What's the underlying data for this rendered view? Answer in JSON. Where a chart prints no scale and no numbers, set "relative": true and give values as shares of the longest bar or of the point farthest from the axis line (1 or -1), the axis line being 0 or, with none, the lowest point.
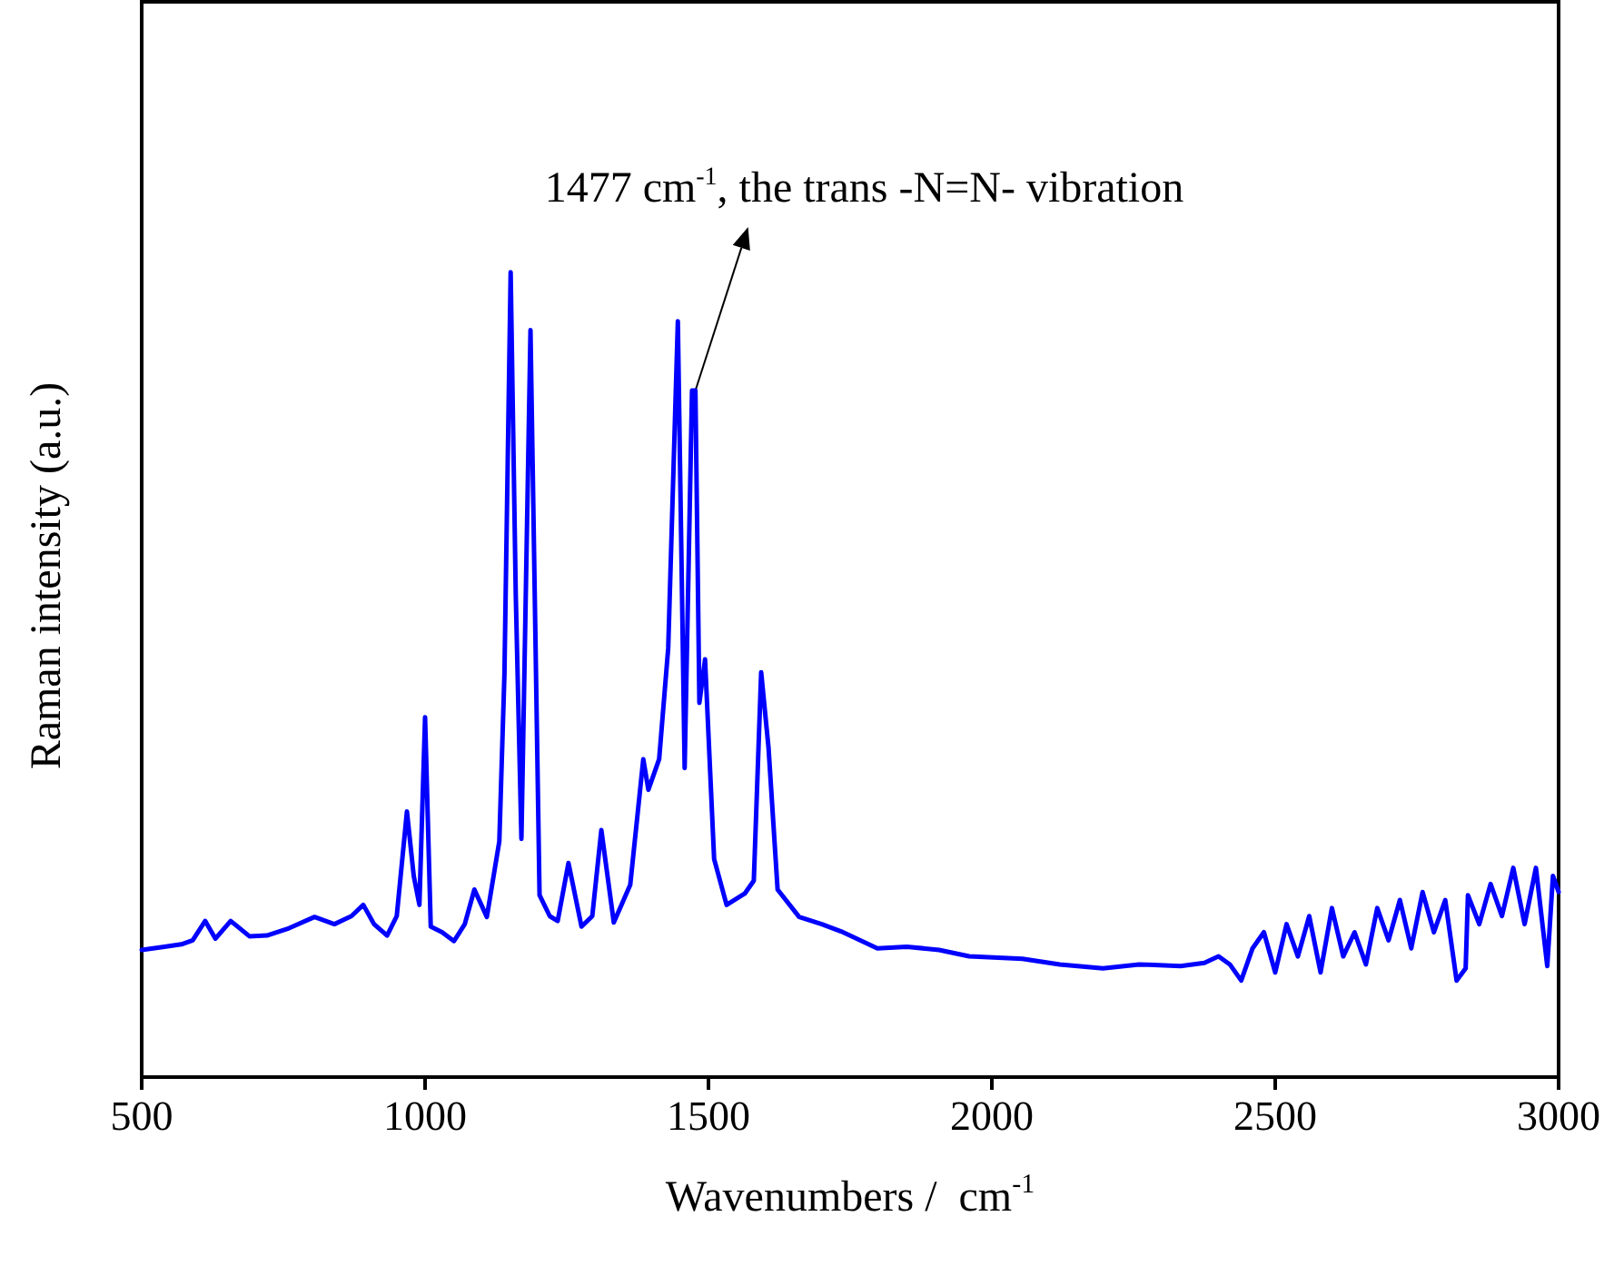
{
  "chart_data": {
    "type": "line",
    "relative": true,
    "xlabel": "Wavenumbers /  cm$^{-1}$",
    "ylabel": "Raman intensity (a.u.)",
    "xlim": [
      500,
      3000
    ],
    "xticks": [
      500,
      1000,
      1500,
      2000,
      2500,
      3000
    ],
    "grid": false,
    "marker": "none",
    "line_style": "solid",
    "annotations": [
      {
        "text": "1477 cm$^{-1}$, the trans -N=N- vibration",
        "x": 1477,
        "y": 0.853
      }
    ],
    "series": [
      {
        "color": "#0000ff",
        "x": [
          500,
          540,
          570,
          590,
          612,
          630,
          657,
          690,
          721,
          760,
          805,
          840,
          870,
          891,
          910,
          933,
          950,
          968,
          980,
          990,
          1000,
          1010,
          1030,
          1051,
          1070,
          1087,
          1109,
          1131,
          1140,
          1151,
          1160,
          1170,
          1186,
          1202,
          1220,
          1234,
          1253,
          1276,
          1295,
          1311,
          1333,
          1362,
          1385,
          1394,
          1413,
          1429,
          1446,
          1458,
          1471,
          1477,
          1484,
          1494,
          1510,
          1532,
          1564,
          1580,
          1593,
          1606,
          1622,
          1660,
          1700,
          1734,
          1798,
          1850,
          1907,
          1960,
          2054,
          2120,
          2196,
          2260,
          2333,
          2375,
          2400,
          2420,
          2440,
          2460,
          2480,
          2500,
          2520,
          2540,
          2560,
          2580,
          2600,
          2620,
          2640,
          2660,
          2680,
          2700,
          2720,
          2740,
          2760,
          2780,
          2800,
          2820,
          2836,
          2840,
          2860,
          2880,
          2900,
          2920,
          2940,
          2960,
          2980,
          2990,
          3000
        ],
        "values": [
          0.158,
          0.162,
          0.165,
          0.17,
          0.194,
          0.172,
          0.194,
          0.175,
          0.176,
          0.185,
          0.199,
          0.19,
          0.2,
          0.214,
          0.19,
          0.176,
          0.2,
          0.33,
          0.25,
          0.214,
          0.447,
          0.187,
          0.18,
          0.169,
          0.19,
          0.233,
          0.199,
          0.293,
          0.5,
          1.0,
          0.6,
          0.296,
          0.928,
          0.226,
          0.2,
          0.194,
          0.266,
          0.187,
          0.2,
          0.307,
          0.192,
          0.239,
          0.395,
          0.357,
          0.395,
          0.533,
          0.939,
          0.384,
          0.853,
          0.853,
          0.465,
          0.519,
          0.271,
          0.214,
          0.228,
          0.244,
          0.503,
          0.409,
          0.233,
          0.199,
          0.19,
          0.181,
          0.16,
          0.162,
          0.158,
          0.15,
          0.147,
          0.14,
          0.135,
          0.14,
          0.138,
          0.142,
          0.15,
          0.14,
          0.12,
          0.16,
          0.18,
          0.13,
          0.19,
          0.15,
          0.2,
          0.13,
          0.21,
          0.15,
          0.18,
          0.14,
          0.21,
          0.17,
          0.22,
          0.16,
          0.23,
          0.18,
          0.22,
          0.12,
          0.135,
          0.226,
          0.19,
          0.24,
          0.2,
          0.26,
          0.19,
          0.26,
          0.138,
          0.25,
          0.23
        ]
      }
    ]
  }
}
